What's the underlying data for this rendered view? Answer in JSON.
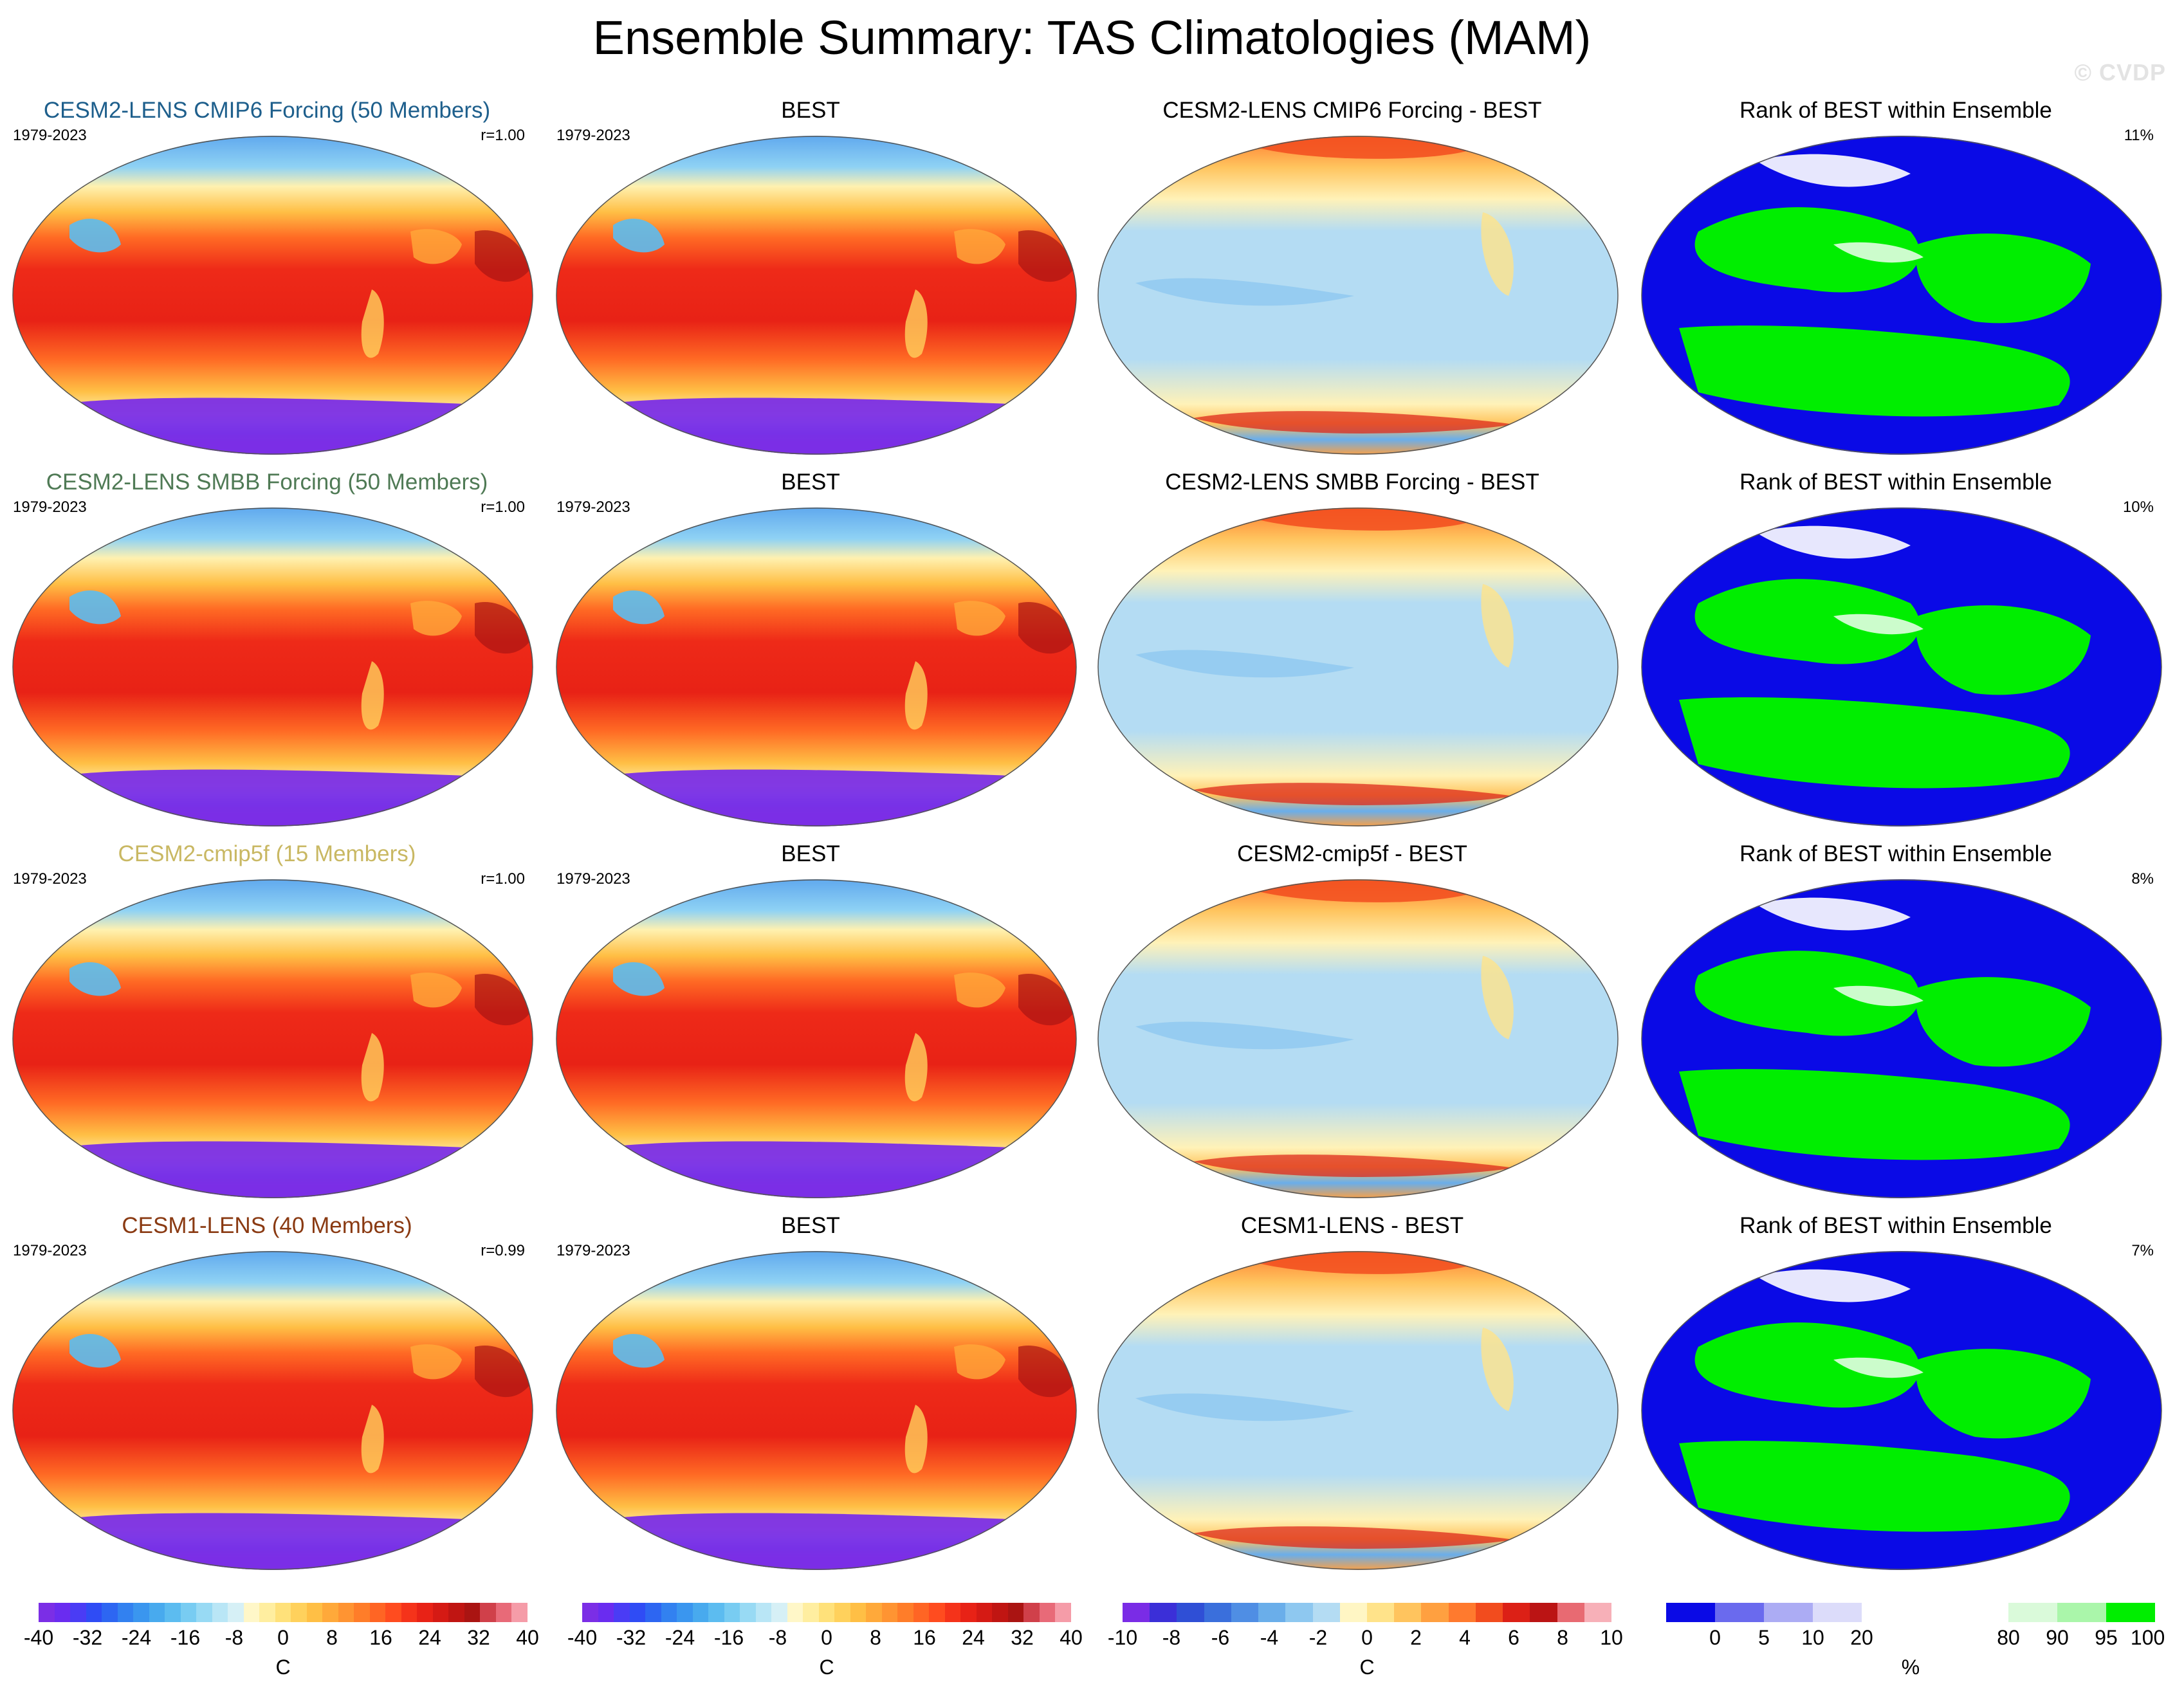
{
  "title": "Ensemble Summary: TAS Climatologies (MAM)",
  "watermark": "© CVDP",
  "rows": [
    {
      "model": {
        "title": "CESM2-LENS CMIP6 Forcing (50 Members)",
        "title_color": "#1e5f8c",
        "period": "1979-2023",
        "r": "r=1.00"
      },
      "obs": {
        "title": "BEST",
        "period": "1979-2023"
      },
      "diff": {
        "title": "CESM2-LENS CMIP6 Forcing - BEST"
      },
      "rank": {
        "title": "Rank of BEST within Ensemble",
        "pct": "11%"
      }
    },
    {
      "model": {
        "title": "CESM2-LENS SMBB Forcing (50 Members)",
        "title_color": "#4f7a55",
        "period": "1979-2023",
        "r": "r=1.00"
      },
      "obs": {
        "title": "BEST",
        "period": "1979-2023"
      },
      "diff": {
        "title": "CESM2-LENS SMBB Forcing - BEST"
      },
      "rank": {
        "title": "Rank of BEST within Ensemble",
        "pct": "10%"
      }
    },
    {
      "model": {
        "title": "CESM2-cmip5f (15 Members)",
        "title_color": "#c9b863",
        "period": "1979-2023",
        "r": "r=1.00"
      },
      "obs": {
        "title": "BEST",
        "period": "1979-2023"
      },
      "diff": {
        "title": "CESM2-cmip5f - BEST"
      },
      "rank": {
        "title": "Rank of BEST within Ensemble",
        "pct": "8%"
      }
    },
    {
      "model": {
        "title": "CESM1-LENS (40 Members)",
        "title_color": "#8a3a12",
        "period": "1979-2023",
        "r": "r=0.99"
      },
      "obs": {
        "title": "BEST",
        "period": "1979-2023"
      },
      "diff": {
        "title": "CESM1-LENS - BEST"
      },
      "rank": {
        "title": "Rank of BEST within Ensemble",
        "pct": "7%"
      }
    }
  ],
  "colorbars": [
    {
      "unit": "C",
      "ticks": [
        "-40",
        "-32",
        "-24",
        "-16",
        "-8",
        "0",
        "8",
        "16",
        "24",
        "32",
        "40"
      ],
      "colors": [
        "#7b2ee6",
        "#6a2cf0",
        "#4a3cf5",
        "#2f4cf5",
        "#2d66f2",
        "#3281f0",
        "#3a96ef",
        "#48aaee",
        "#5cbcf0",
        "#78ccf2",
        "#98daf4",
        "#b9e6f6",
        "#d6f0f6",
        "#fff7c8",
        "#ffeea0",
        "#ffe17a",
        "#ffd15c",
        "#ffbf45",
        "#ffa93a",
        "#ff9432",
        "#ff7d29",
        "#ff6524",
        "#ff4c1f",
        "#f5331a",
        "#e82216",
        "#d51a14",
        "#c01512",
        "#aa1412",
        "#d0404a",
        "#e86a78",
        "#f59ca8"
      ]
    },
    {
      "unit": "C",
      "ticks": [
        "-40",
        "-32",
        "-24",
        "-16",
        "-8",
        "0",
        "8",
        "16",
        "24",
        "32",
        "40"
      ],
      "colors": [
        "#7b2ee6",
        "#6a2cf0",
        "#4a3cf5",
        "#2f4cf5",
        "#2d66f2",
        "#3281f0",
        "#3a96ef",
        "#48aaee",
        "#5cbcf0",
        "#78ccf2",
        "#98daf4",
        "#b9e6f6",
        "#d6f0f6",
        "#fff7c8",
        "#ffeea0",
        "#ffe17a",
        "#ffd15c",
        "#ffbf45",
        "#ffa93a",
        "#ff9432",
        "#ff7d29",
        "#ff6524",
        "#ff4c1f",
        "#f5331a",
        "#e82216",
        "#d51a14",
        "#c01512",
        "#aa1412",
        "#d0404a",
        "#e86a78",
        "#f59ca8"
      ]
    },
    {
      "unit": "C",
      "ticks": [
        "-10",
        "-8",
        "-6",
        "-4",
        "-2",
        "0",
        "2",
        "4",
        "6",
        "8",
        "10"
      ],
      "colors": [
        "#7a2ce6",
        "#3b2fd8",
        "#2f4fd6",
        "#3a6fdc",
        "#4f8ee4",
        "#6aaeea",
        "#8ec8f0",
        "#b4dcf3",
        "#fff6c4",
        "#ffe38a",
        "#ffc45e",
        "#ffa040",
        "#ff7a2e",
        "#f24c1e",
        "#dc2016",
        "#bb1414",
        "#e86a72",
        "#f7b0b8"
      ]
    },
    {
      "unit": "%",
      "ticks": [
        "0",
        "5",
        "10",
        "20",
        "80",
        "90",
        "95",
        "100"
      ],
      "colors": [
        "#0a0ae6",
        "#6a6aee",
        "#acacf4",
        "#dcdcfa",
        "#ffffff",
        "#ffffff",
        "#ffffff",
        "#dafada",
        "#aaf6aa",
        "#00ee00"
      ]
    }
  ]
}
